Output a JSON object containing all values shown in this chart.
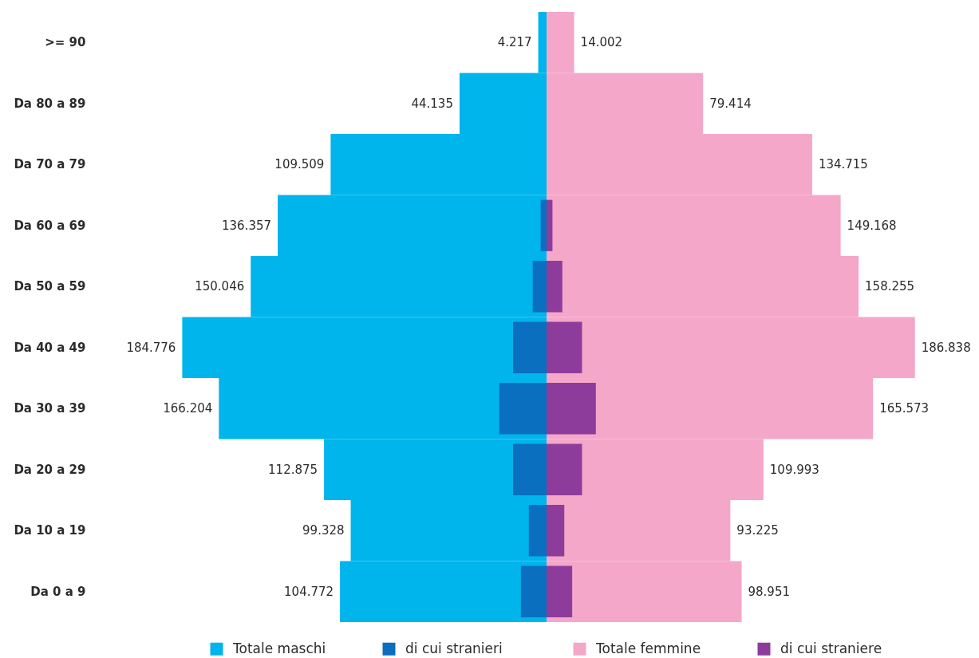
{
  "chart_data": [
    {
      "type": "bar",
      "orientation": "horizontal",
      "categories": [
        ">= 90",
        "Da 80 a 89",
        "Da 70 a 79",
        "Da 60 a 69",
        "Da 50 a 59",
        "Da 40 a 49",
        "Da 30 a 39",
        "Da 20 a 29",
        "Da 10 a 19",
        "Da 0 a 9"
      ],
      "series": [
        {
          "name": "Totale maschi",
          "color": "#00b4ec",
          "values": [
            4217,
            44135,
            109509,
            136357,
            150046,
            184776,
            166204,
            112875,
            99328,
            104772
          ],
          "value_labels": [
            "4.217",
            "44.135",
            "109.509",
            "136.357",
            "150.046",
            "184.776",
            "166.204",
            "112.875",
            "99.328",
            "104.772"
          ]
        },
        {
          "name": "di cui stranieri",
          "color": "#0a6fbf",
          "values": [
            null,
            null,
            null,
            3000,
            7000,
            17000,
            24000,
            17000,
            9000,
            13000
          ]
        }
      ],
      "legend": "bottom",
      "tick_labels": "y"
    },
    {
      "type": "bar",
      "orientation": "horizontal",
      "categories": [
        ">= 90",
        "Da 80 a 89",
        "Da 70 a 79",
        "Da 60 a 69",
        "Da 50 a 59",
        "Da 40 a 49",
        "Da 30 a 39",
        "Da 20 a 29",
        "Da 10 a 19",
        "Da 0 a 9"
      ],
      "series": [
        {
          "name": "Totale femmine",
          "color": "#f4a7c8",
          "values": [
            14002,
            79414,
            134715,
            149168,
            158255,
            186838,
            165573,
            109993,
            93225,
            98951
          ],
          "value_labels": [
            "14.002",
            "79.414",
            "134.715",
            "149.168",
            "158.255",
            "186.838",
            "165.573",
            "109.993",
            "93.225",
            "98.951"
          ]
        },
        {
          "name": "di cui straniere",
          "color": "#8e3c9c",
          "values": [
            null,
            null,
            null,
            3000,
            8000,
            18000,
            25000,
            18000,
            9000,
            13000
          ]
        }
      ],
      "legend": "bottom",
      "tick_labels": false
    }
  ]
}
